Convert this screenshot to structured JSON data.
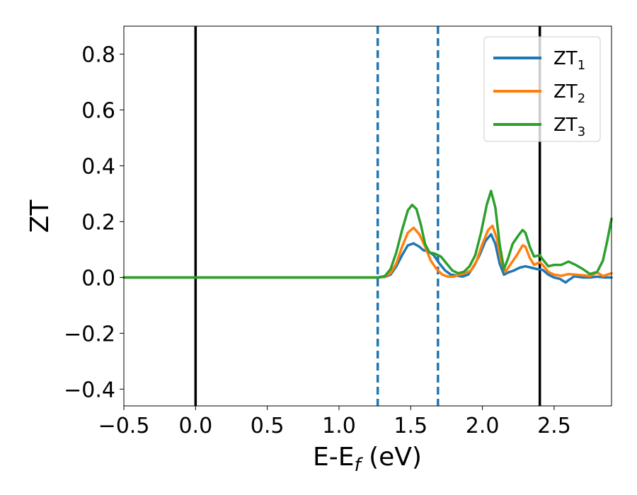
{
  "chart_data": {
    "type": "line",
    "xlabel": "E-E",
    "xlabel_sub": "f",
    "xlabel_unit": " (eV)",
    "ylabel": "ZT",
    "xlim": [
      -0.5,
      2.9
    ],
    "ylim": [
      -0.46,
      0.9
    ],
    "xticks": [
      -0.5,
      0.0,
      0.5,
      1.0,
      1.5,
      2.0,
      2.5
    ],
    "xtick_labels": [
      "−0.5",
      "0.0",
      "0.5",
      "1.0",
      "1.5",
      "2.0",
      "2.5"
    ],
    "yticks": [
      -0.4,
      -0.2,
      0.0,
      0.2,
      0.4,
      0.6,
      0.8
    ],
    "ytick_labels": [
      "−0.4",
      "−0.2",
      "0.0",
      "0.2",
      "0.4",
      "0.6",
      "0.8"
    ],
    "grid": false,
    "legend_position": "top-right",
    "vertical_lines": [
      {
        "x": 0.0,
        "style": "solid",
        "color": "#000000"
      },
      {
        "x": 2.4,
        "style": "solid",
        "color": "#000000"
      },
      {
        "x": 1.27,
        "style": "dashed",
        "color": "#1f77b4"
      },
      {
        "x": 1.69,
        "style": "dashed",
        "color": "#1f77b4"
      }
    ],
    "series": [
      {
        "name": "ZT",
        "sub": "1",
        "color": "#1f77b4",
        "points": [
          [
            -0.5,
            0
          ],
          [
            1.27,
            0
          ],
          [
            1.32,
            0.002
          ],
          [
            1.36,
            0.01
          ],
          [
            1.4,
            0.04
          ],
          [
            1.44,
            0.08
          ],
          [
            1.48,
            0.115
          ],
          [
            1.52,
            0.122
          ],
          [
            1.56,
            0.11
          ],
          [
            1.59,
            0.097
          ],
          [
            1.62,
            0.095
          ],
          [
            1.66,
            0.08
          ],
          [
            1.7,
            0.05
          ],
          [
            1.74,
            0.025
          ],
          [
            1.78,
            0.01
          ],
          [
            1.82,
            0.007
          ],
          [
            1.86,
            0.003
          ],
          [
            1.9,
            0.01
          ],
          [
            1.94,
            0.04
          ],
          [
            1.98,
            0.08
          ],
          [
            2.02,
            0.13
          ],
          [
            2.06,
            0.155
          ],
          [
            2.09,
            0.12
          ],
          [
            2.12,
            0.05
          ],
          [
            2.15,
            0.01
          ],
          [
            2.18,
            0.018
          ],
          [
            2.22,
            0.025
          ],
          [
            2.26,
            0.035
          ],
          [
            2.3,
            0.04
          ],
          [
            2.34,
            0.035
          ],
          [
            2.38,
            0.03
          ],
          [
            2.42,
            0.027
          ],
          [
            2.46,
            0.01
          ],
          [
            2.5,
            0.0
          ],
          [
            2.54,
            -0.005
          ],
          [
            2.58,
            -0.018
          ],
          [
            2.6,
            -0.01
          ],
          [
            2.64,
            0.004
          ],
          [
            2.7,
            0.0
          ],
          [
            2.75,
            0.0
          ],
          [
            2.8,
            0.003
          ],
          [
            2.85,
            0.0
          ],
          [
            2.9,
            0.0
          ]
        ]
      },
      {
        "name": "ZT",
        "sub": "2",
        "color": "#ff7f0e",
        "points": [
          [
            -0.5,
            0
          ],
          [
            1.27,
            0
          ],
          [
            1.32,
            0.003
          ],
          [
            1.36,
            0.015
          ],
          [
            1.4,
            0.05
          ],
          [
            1.44,
            0.11
          ],
          [
            1.48,
            0.16
          ],
          [
            1.52,
            0.178
          ],
          [
            1.56,
            0.155
          ],
          [
            1.6,
            0.11
          ],
          [
            1.64,
            0.06
          ],
          [
            1.68,
            0.03
          ],
          [
            1.72,
            0.01
          ],
          [
            1.76,
            0.003
          ],
          [
            1.8,
            0.003
          ],
          [
            1.84,
            0.01
          ],
          [
            1.88,
            0.015
          ],
          [
            1.92,
            0.025
          ],
          [
            1.96,
            0.06
          ],
          [
            2.0,
            0.12
          ],
          [
            2.04,
            0.17
          ],
          [
            2.07,
            0.185
          ],
          [
            2.1,
            0.14
          ],
          [
            2.13,
            0.06
          ],
          [
            2.16,
            0.02
          ],
          [
            2.2,
            0.05
          ],
          [
            2.24,
            0.08
          ],
          [
            2.28,
            0.115
          ],
          [
            2.3,
            0.11
          ],
          [
            2.33,
            0.07
          ],
          [
            2.36,
            0.045
          ],
          [
            2.4,
            0.055
          ],
          [
            2.42,
            0.045
          ],
          [
            2.46,
            0.02
          ],
          [
            2.5,
            0.01
          ],
          [
            2.55,
            0.006
          ],
          [
            2.6,
            0.012
          ],
          [
            2.65,
            0.01
          ],
          [
            2.7,
            0.008
          ],
          [
            2.75,
            0.005
          ],
          [
            2.8,
            0.018
          ],
          [
            2.84,
            0.005
          ],
          [
            2.9,
            0.015
          ]
        ]
      },
      {
        "name": "ZT",
        "sub": "3",
        "color": "#2ca02c",
        "points": [
          [
            -0.5,
            0
          ],
          [
            1.27,
            0
          ],
          [
            1.32,
            0.005
          ],
          [
            1.36,
            0.03
          ],
          [
            1.4,
            0.09
          ],
          [
            1.44,
            0.17
          ],
          [
            1.48,
            0.24
          ],
          [
            1.51,
            0.26
          ],
          [
            1.54,
            0.245
          ],
          [
            1.57,
            0.19
          ],
          [
            1.6,
            0.12
          ],
          [
            1.63,
            0.09
          ],
          [
            1.67,
            0.085
          ],
          [
            1.71,
            0.075
          ],
          [
            1.75,
            0.05
          ],
          [
            1.79,
            0.025
          ],
          [
            1.83,
            0.015
          ],
          [
            1.87,
            0.02
          ],
          [
            1.91,
            0.04
          ],
          [
            1.95,
            0.08
          ],
          [
            1.99,
            0.16
          ],
          [
            2.03,
            0.26
          ],
          [
            2.06,
            0.31
          ],
          [
            2.09,
            0.25
          ],
          [
            2.12,
            0.12
          ],
          [
            2.15,
            0.03
          ],
          [
            2.18,
            0.07
          ],
          [
            2.21,
            0.12
          ],
          [
            2.25,
            0.15
          ],
          [
            2.28,
            0.17
          ],
          [
            2.3,
            0.16
          ],
          [
            2.33,
            0.11
          ],
          [
            2.36,
            0.075
          ],
          [
            2.4,
            0.08
          ],
          [
            2.42,
            0.065
          ],
          [
            2.46,
            0.04
          ],
          [
            2.5,
            0.045
          ],
          [
            2.55,
            0.045
          ],
          [
            2.6,
            0.057
          ],
          [
            2.65,
            0.045
          ],
          [
            2.7,
            0.03
          ],
          [
            2.75,
            0.012
          ],
          [
            2.8,
            0.02
          ],
          [
            2.84,
            0.06
          ],
          [
            2.87,
            0.13
          ],
          [
            2.9,
            0.21
          ]
        ]
      }
    ]
  }
}
